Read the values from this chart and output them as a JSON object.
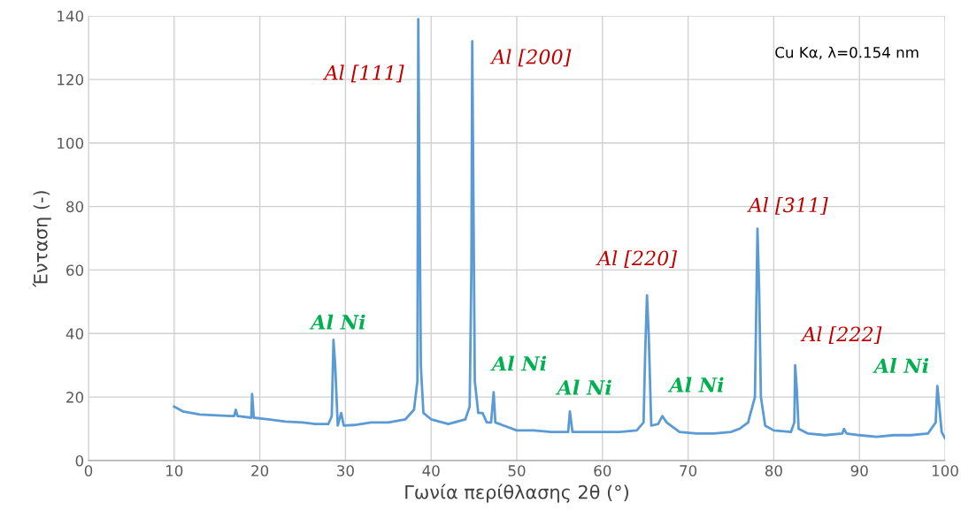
{
  "chart_data": {
    "type": "line",
    "xlabel": "Γωνία περίθλασης 2θ (°)",
    "ylabel": "Ένταση (-)",
    "xlim": [
      0,
      100
    ],
    "ylim": [
      0,
      140
    ],
    "xticks": [
      0,
      10,
      20,
      30,
      40,
      50,
      60,
      70,
      80,
      90,
      100
    ],
    "yticks": [
      0,
      20,
      40,
      60,
      80,
      100,
      120,
      140
    ],
    "grid": true,
    "line_style": "solid",
    "marker": "none",
    "series": [
      {
        "color": "#5b9bd5",
        "x": [
          10,
          11,
          13,
          15,
          17,
          17.2,
          17.4,
          19,
          19.1,
          19.3,
          21,
          23,
          25,
          26.5,
          28,
          28.4,
          28.6,
          28.8,
          29.1,
          29.5,
          29.8,
          31,
          33,
          35,
          37,
          38,
          38.4,
          38.5,
          38.6,
          38.8,
          39.1,
          40,
          42,
          44,
          44.5,
          44.7,
          44.8,
          44.9,
          45.1,
          45.5,
          46,
          46.5,
          47,
          47.3,
          47.5,
          48.5,
          50,
          52,
          54,
          56,
          56.2,
          56.5,
          58,
          60,
          62,
          64,
          64.8,
          65,
          65.2,
          65.4,
          65.7,
          66.5,
          67,
          67.5,
          69,
          71,
          73,
          75,
          76,
          77,
          77.8,
          78.1,
          78.3,
          78.5,
          79,
          80,
          82,
          82.4,
          82.5,
          82.7,
          82.9,
          84,
          86,
          88,
          88.2,
          88.5,
          90,
          92,
          94,
          96,
          98,
          98.9,
          99.1,
          99.3,
          99.6,
          100
        ],
        "values": [
          17,
          15.5,
          14.5,
          14.2,
          14,
          16,
          14,
          13.5,
          21,
          13.5,
          13,
          12.3,
          12,
          11.5,
          11.5,
          14,
          38,
          30,
          11,
          15,
          11,
          11.2,
          12,
          12,
          13,
          16,
          25,
          139,
          100,
          30,
          15,
          13,
          11.5,
          13,
          17,
          60,
          132,
          96,
          25,
          15,
          15,
          12,
          12,
          21.5,
          12,
          11,
          9.5,
          9.5,
          9,
          9,
          15.5,
          9,
          9,
          9,
          9,
          9.5,
          12,
          35,
          52,
          40,
          11,
          11.5,
          14,
          12,
          9,
          8.5,
          8.5,
          9,
          10,
          12,
          20,
          73,
          53,
          20,
          11,
          9.5,
          9,
          12,
          30,
          22,
          10,
          8.5,
          8,
          8.5,
          10,
          8.5,
          8,
          7.5,
          8,
          8,
          8.5,
          12,
          23.5,
          18,
          9,
          7
        ]
      }
    ],
    "annotations": [
      "Cu Kα, λ=0.154 nm",
      {
        "text": "Al [111]",
        "x": 38.5,
        "y": 139
      },
      {
        "text": "Al [200]",
        "x": 44.8,
        "y": 132
      },
      {
        "text": "Al [220]",
        "x": 65.2,
        "y": 52
      },
      {
        "text": "Al [311]",
        "x": 78.1,
        "y": 73
      },
      {
        "text": "Al [222]",
        "x": 82.5,
        "y": 30
      },
      {
        "text": "Al Ni",
        "x": 28.6,
        "y": 38
      },
      {
        "text": "Al Ni",
        "x": 47.3,
        "y": 21.5
      },
      {
        "text": "Al Ni",
        "x": 56.2,
        "y": 15.5
      },
      {
        "text": "Al Ni",
        "x": 67,
        "y": 14
      },
      {
        "text": "Al Ni",
        "x": 99.1,
        "y": 23.5
      }
    ]
  }
}
